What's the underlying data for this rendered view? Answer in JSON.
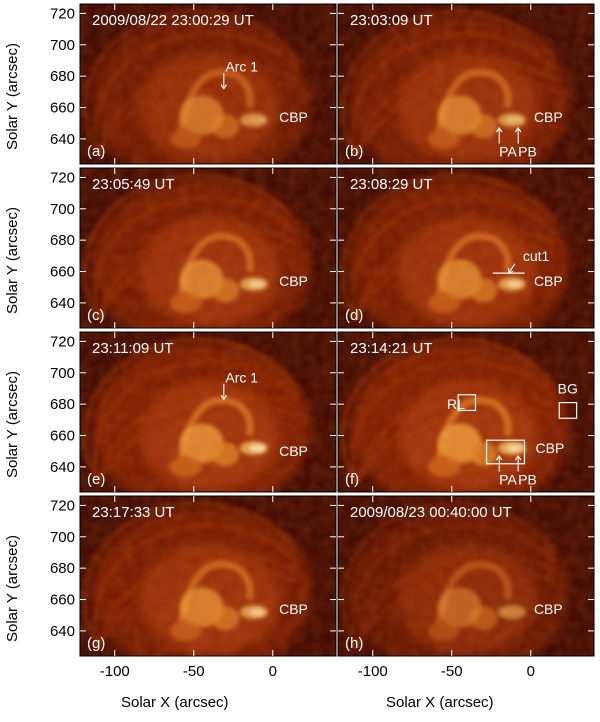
{
  "figure": {
    "x_axis_label": "Solar X (arcsec)",
    "y_axis_label": "Solar Y (arcsec)",
    "x_ticks": [
      -100,
      -50,
      0
    ],
    "y_ticks": [
      720,
      700,
      680,
      660,
      640
    ],
    "x_range": [
      -122,
      40
    ],
    "y_range": [
      624,
      726
    ]
  },
  "panels": [
    {
      "letter": "(a)",
      "time": "2009/08/22 23:00:29 UT",
      "labels": [
        {
          "text": "Arc 1",
          "x": -30,
          "y": 686
        },
        {
          "text": "CBP",
          "x": 4,
          "y": 654
        }
      ],
      "arrows": [
        {
          "from": [
            -31,
            682
          ],
          "to": [
            -31,
            672
          ]
        }
      ],
      "brightness": 0.85
    },
    {
      "letter": "(b)",
      "time": "23:03:09 UT",
      "labels": [
        {
          "text": "CBP",
          "x": 2,
          "y": 654
        },
        {
          "text": "PA",
          "x": -20,
          "y": 632
        },
        {
          "text": "PB",
          "x": -8,
          "y": 632
        }
      ],
      "arrows": [
        {
          "from": [
            -20,
            637
          ],
          "to": [
            -20,
            647
          ]
        },
        {
          "from": [
            -8,
            637
          ],
          "to": [
            -8,
            647
          ]
        }
      ],
      "brightness": 0.95
    },
    {
      "letter": "(c)",
      "time": "23:05:49 UT",
      "labels": [
        {
          "text": "CBP",
          "x": 4,
          "y": 654
        }
      ],
      "arrows": [],
      "brightness": 1.0
    },
    {
      "letter": "(d)",
      "time": "23:08:29 UT",
      "labels": [
        {
          "text": "cut1",
          "x": -5,
          "y": 670
        },
        {
          "text": "CBP",
          "x": 2,
          "y": 654
        }
      ],
      "arrows": [
        {
          "from": [
            -10,
            665
          ],
          "to": [
            -14,
            659
          ]
        }
      ],
      "brightness": 1.0
    },
    {
      "letter": "(e)",
      "time": "23:11:09 UT",
      "labels": [
        {
          "text": "Arc 1",
          "x": -30,
          "y": 697
        },
        {
          "text": "CBP",
          "x": 4,
          "y": 650
        }
      ],
      "arrows": [
        {
          "from": [
            -31,
            693
          ],
          "to": [
            -31,
            683
          ]
        }
      ],
      "brightness": 1.1
    },
    {
      "letter": "(f)",
      "time": "23:14:21 UT",
      "labels": [
        {
          "text": "RL",
          "x": -53,
          "y": 680
        },
        {
          "text": "BG",
          "x": 17,
          "y": 690
        },
        {
          "text": "CBP",
          "x": 3,
          "y": 652
        },
        {
          "text": "PA",
          "x": -20,
          "y": 632
        },
        {
          "text": "PB",
          "x": -8,
          "y": 632
        }
      ],
      "arrows": [
        {
          "from": [
            -20,
            637
          ],
          "to": [
            -20,
            647
          ]
        },
        {
          "from": [
            -8,
            637
          ],
          "to": [
            -8,
            647
          ]
        }
      ],
      "boxes": [
        {
          "x0": -46,
          "y0": 676,
          "x1": -35,
          "y1": 686
        },
        {
          "x0": 18,
          "y0": 671,
          "x1": 29,
          "y1": 681
        },
        {
          "x0": -28,
          "y0": 642,
          "x1": -4,
          "y1": 657
        }
      ],
      "brightness": 1.15
    },
    {
      "letter": "(g)",
      "time": "23:17:33 UT",
      "labels": [
        {
          "text": "CBP",
          "x": 4,
          "y": 654
        }
      ],
      "arrows": [],
      "brightness": 1.0
    },
    {
      "letter": "(h)",
      "time": "2009/08/23 00:40:00 UT",
      "labels": [
        {
          "text": "CBP",
          "x": 2,
          "y": 654
        }
      ],
      "arrows": [],
      "brightness": 0.7
    }
  ],
  "colors": {
    "background": "#ffffff",
    "frame": "#000000",
    "annotation": "#ffffff"
  }
}
